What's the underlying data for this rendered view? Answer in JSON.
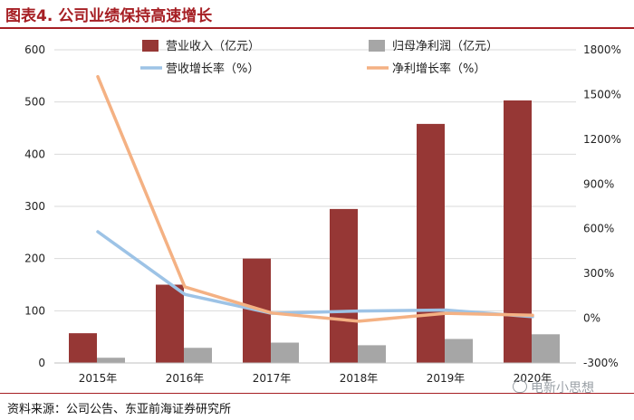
{
  "header": {
    "title": "图表4. 公司业绩保持高速增长"
  },
  "footer": {
    "source": "资料来源：公司公告、东亚前海证券研究所",
    "watermark": "电新小思想"
  },
  "colors": {
    "revenue": "#963735",
    "profit": "#a6a6a6",
    "revenue_growth": "#9dc3e6",
    "profit_growth": "#f4b183",
    "grid": "#d9d9d9",
    "text": "#222222"
  },
  "chart_data": {
    "type": "bar",
    "title": "",
    "categories": [
      "2015年",
      "2016年",
      "2017年",
      "2018年",
      "2019年",
      "2020年"
    ],
    "series": [
      {
        "name": "营业收入（亿元）",
        "kind": "bar",
        "axis": "left",
        "values": [
          57,
          150,
          200,
          295,
          458,
          503
        ]
      },
      {
        "name": "归母净利润（亿元）",
        "kind": "bar",
        "axis": "left",
        "values": [
          10,
          29,
          39,
          34,
          46,
          55
        ]
      },
      {
        "name": "营收增长率（%）",
        "kind": "line",
        "axis": "right",
        "values": [
          580,
          160,
          33,
          48,
          55,
          10
        ]
      },
      {
        "name": "净利增长率（%）",
        "kind": "line",
        "axis": "right",
        "values": [
          1620,
          210,
          35,
          -20,
          33,
          20
        ]
      }
    ],
    "y_left": {
      "min": 0,
      "max": 600,
      "ticks": [
        "0",
        "100",
        "200",
        "300",
        "400",
        "500",
        "600"
      ]
    },
    "y_right": {
      "min": -300,
      "max": 1800,
      "ticks": [
        "-300%",
        "0%",
        "300%",
        "600%",
        "900%",
        "1200%",
        "1500%",
        "1800%"
      ]
    },
    "legend": "top"
  }
}
